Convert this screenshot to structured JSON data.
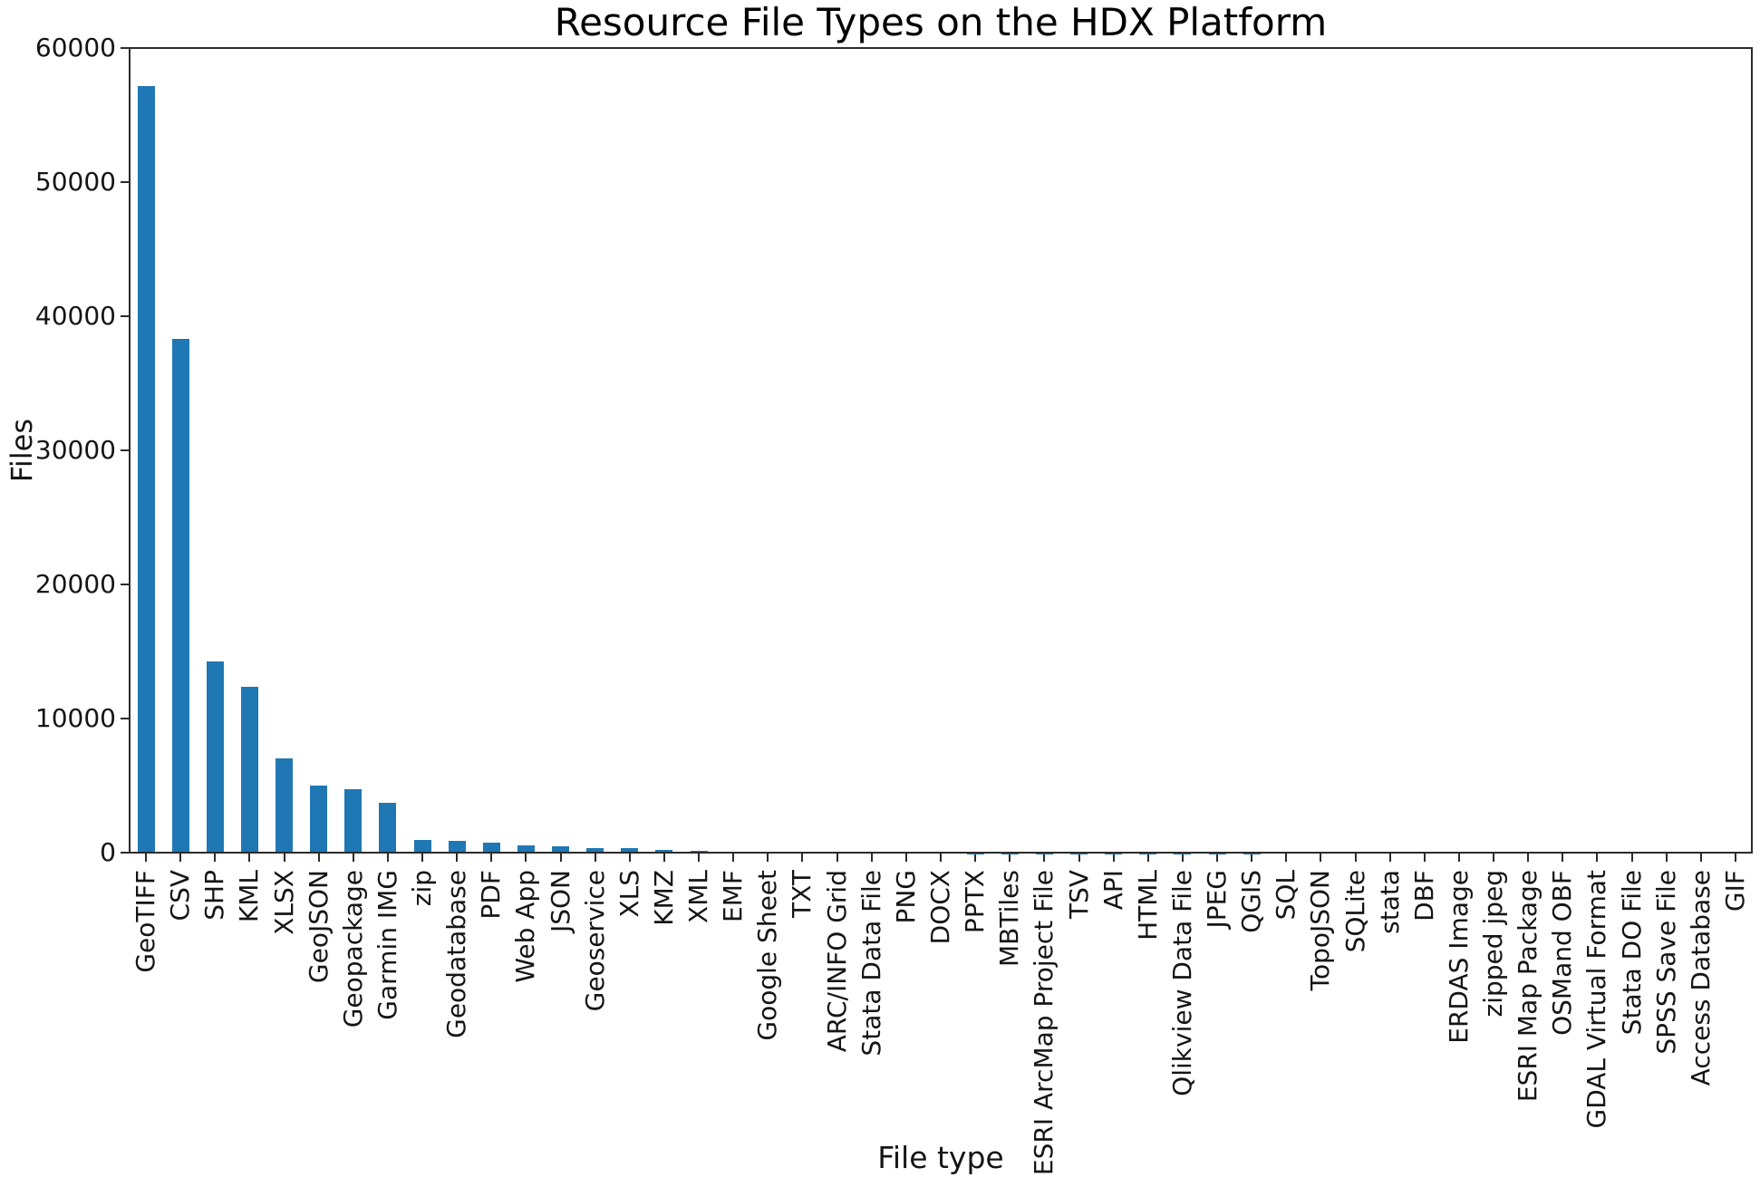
{
  "chart_data": {
    "type": "bar",
    "title": "Resource File Types on the HDX Platform",
    "xlabel": "File type",
    "ylabel": "Files",
    "categories": [
      "GeoTIFF",
      "CSV",
      "SHP",
      "KML",
      "XLSX",
      "GeoJSON",
      "Geopackage",
      "Garmin IMG",
      "zip",
      "Geodatabase",
      "PDF",
      "Web App",
      "JSON",
      "Geoservice",
      "XLS",
      "KMZ",
      "XML",
      "EMF",
      "Google Sheet",
      "TXT",
      "ARC/INFO Grid",
      "Stata Data File",
      "PNG",
      "DOCX",
      "PPTX",
      "MBTiles",
      "ESRI ArcMap Project File",
      "TSV",
      "API",
      "HTML",
      "Qlikview Data File",
      "JPEG",
      "QGIS",
      "SQL",
      "TopoJSON",
      "SQLite",
      "stata",
      "DBF",
      "ERDAS Image",
      "zipped jpeg",
      "ESRI Map Package",
      "OSMand OBF",
      "GDAL Virtual Format",
      "Stata DO File",
      "SPSS Save File",
      "Access Database",
      "GIF"
    ],
    "values": [
      57200,
      38400,
      14300,
      12400,
      7100,
      5070,
      4820,
      3780,
      1010,
      950,
      800,
      585,
      520,
      435,
      430,
      270,
      200,
      115,
      90,
      70,
      58,
      48,
      42,
      36,
      25,
      18,
      15,
      12,
      10,
      9,
      8,
      7,
      6,
      5,
      5,
      4,
      4,
      3,
      3,
      2,
      2,
      2,
      1,
      1,
      1,
      1,
      1
    ],
    "ylim": [
      0,
      60000
    ],
    "yticks": [
      0,
      10000,
      20000,
      30000,
      40000,
      50000,
      60000
    ],
    "bar_color": "#1f77b4",
    "grid": false,
    "legend": "none",
    "x_tick_label_rotation": 90
  }
}
